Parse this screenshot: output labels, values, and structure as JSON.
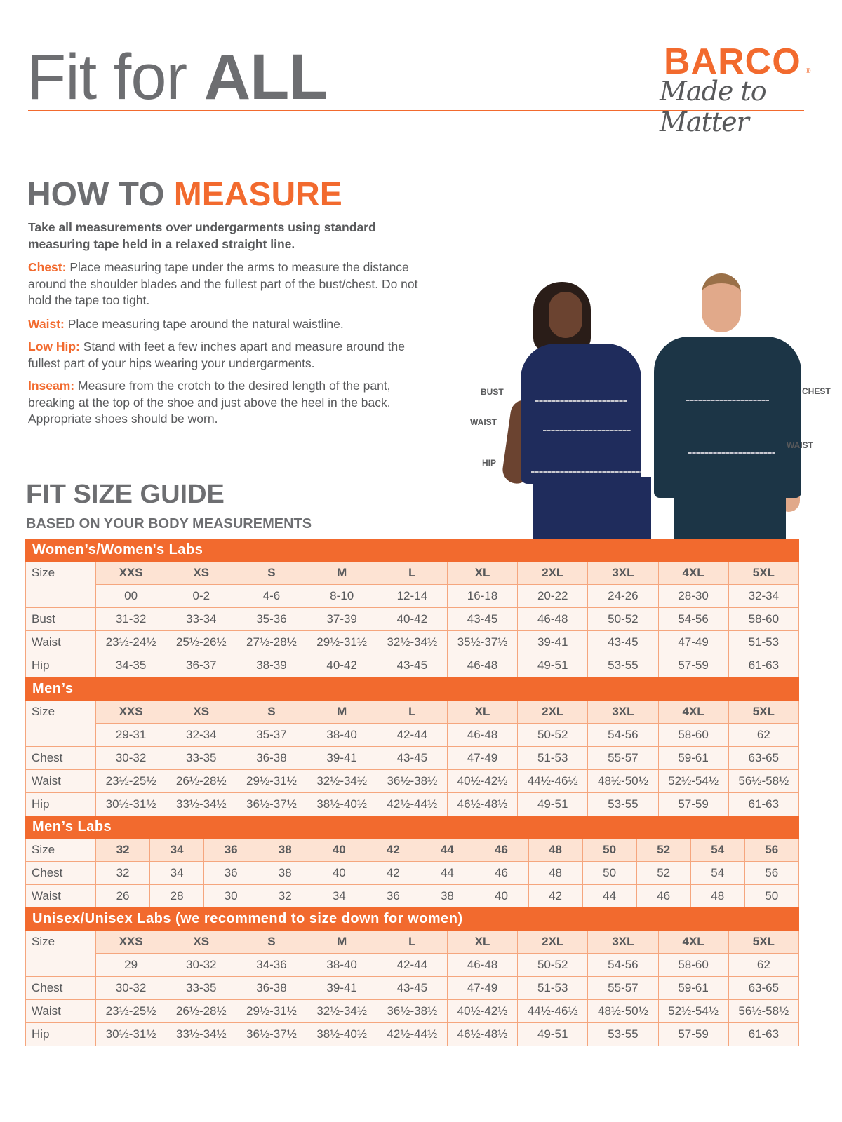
{
  "header": {
    "title_regular": "Fit for ",
    "title_bold": "ALL",
    "logo_brand": "BARCO",
    "logo_reg": "®",
    "logo_tagline": "Made to Matter"
  },
  "measure": {
    "heading_gray": "HOW TO ",
    "heading_orange": "MEASURE",
    "intro": "Take all measurements over undergarments using standard measuring tape held in a relaxed straight line.",
    "items": [
      {
        "key": "Chest:",
        "text": "Place measuring tape under the arms to measure the distance around the shoulder blades and the fullest part of the bust/chest. Do not hold the tape too tight."
      },
      {
        "key": "Waist:",
        "text": "Place measuring tape around the natural waistline."
      },
      {
        "key": "Low Hip:",
        "text": "Stand with feet a few inches apart and measure around the fullest part of your hips wearing your undergarments."
      },
      {
        "key": "Inseam:",
        "text": "Measure from the crotch to the desired length of the pant, breaking at the top of the shoe and just above the heel in the back. Appropriate shoes should be worn."
      }
    ]
  },
  "figure": {
    "women_labels": [
      "BUST",
      "WAIST",
      "HIP"
    ],
    "men_labels": [
      "CHEST",
      "WAIST"
    ],
    "scrub_colors": {
      "women": "#1f2c5c",
      "men": "#1c3546"
    }
  },
  "guide": {
    "title": "FIT SIZE GUIDE",
    "subtitle": "BASED ON YOUR BODY MEASUREMENTS"
  },
  "tables": [
    {
      "title": "Women’s/Women's Labs",
      "size_label": "Size",
      "sizes": [
        "XXS",
        "XS",
        "S",
        "M",
        "L",
        "XL",
        "2XL",
        "3XL",
        "4XL",
        "5XL"
      ],
      "numeric": [
        "00",
        "0-2",
        "4-6",
        "8-10",
        "12-14",
        "16-18",
        "20-22",
        "24-26",
        "28-30",
        "32-34"
      ],
      "rows": [
        {
          "label": "Bust",
          "values": [
            "31-32",
            "33-34",
            "35-36",
            "37-39",
            "40-42",
            "43-45",
            "46-48",
            "50-52",
            "54-56",
            "58-60"
          ]
        },
        {
          "label": "Waist",
          "values": [
            "23½-24½",
            "25½-26½",
            "27½-28½",
            "29½-31½",
            "32½-34½",
            "35½-37½",
            "39-41",
            "43-45",
            "47-49",
            "51-53"
          ]
        },
        {
          "label": "Hip",
          "values": [
            "34-35",
            "36-37",
            "38-39",
            "40-42",
            "43-45",
            "46-48",
            "49-51",
            "53-55",
            "57-59",
            "61-63"
          ]
        }
      ]
    },
    {
      "title": "Men’s",
      "size_label": "Size",
      "sizes": [
        "XXS",
        "XS",
        "S",
        "M",
        "L",
        "XL",
        "2XL",
        "3XL",
        "4XL",
        "5XL"
      ],
      "numeric": [
        "29-31",
        "32-34",
        "35-37",
        "38-40",
        "42-44",
        "46-48",
        "50-52",
        "54-56",
        "58-60",
        "62"
      ],
      "rows": [
        {
          "label": "Chest",
          "values": [
            "30-32",
            "33-35",
            "36-38",
            "39-41",
            "43-45",
            "47-49",
            "51-53",
            "55-57",
            "59-61",
            "63-65"
          ]
        },
        {
          "label": "Waist",
          "values": [
            "23½-25½",
            "26½-28½",
            "29½-31½",
            "32½-34½",
            "36½-38½",
            "40½-42½",
            "44½-46½",
            "48½-50½",
            "52½-54½",
            "56½-58½"
          ]
        },
        {
          "label": "Hip",
          "values": [
            "30½-31½",
            "33½-34½",
            "36½-37½",
            "38½-40½",
            "42½-44½",
            "46½-48½",
            "49-51",
            "53-55",
            "57-59",
            "61-63"
          ]
        }
      ]
    },
    {
      "title": "Men’s Labs",
      "size_label": "Size",
      "sizes": [
        "32",
        "34",
        "36",
        "38",
        "40",
        "42",
        "44",
        "46",
        "48",
        "50",
        "52",
        "54",
        "56"
      ],
      "rows": [
        {
          "label": "Chest",
          "values": [
            "32",
            "34",
            "36",
            "38",
            "40",
            "42",
            "44",
            "46",
            "48",
            "50",
            "52",
            "54",
            "56"
          ]
        },
        {
          "label": "Waist",
          "values": [
            "26",
            "28",
            "30",
            "32",
            "34",
            "36",
            "38",
            "40",
            "42",
            "44",
            "46",
            "48",
            "50"
          ]
        }
      ]
    },
    {
      "title": "Unisex/Unisex Labs (we recommend to size down for women)",
      "size_label": "Size",
      "sizes": [
        "XXS",
        "XS",
        "S",
        "M",
        "L",
        "XL",
        "2XL",
        "3XL",
        "4XL",
        "5XL"
      ],
      "numeric": [
        "29",
        "30-32",
        "34-36",
        "38-40",
        "42-44",
        "46-48",
        "50-52",
        "54-56",
        "58-60",
        "62"
      ],
      "rows": [
        {
          "label": "Chest",
          "values": [
            "30-32",
            "33-35",
            "36-38",
            "39-41",
            "43-45",
            "47-49",
            "51-53",
            "55-57",
            "59-61",
            "63-65"
          ]
        },
        {
          "label": "Waist",
          "values": [
            "23½-25½",
            "26½-28½",
            "29½-31½",
            "32½-34½",
            "36½-38½",
            "40½-42½",
            "44½-46½",
            "48½-50½",
            "52½-54½",
            "56½-58½"
          ]
        },
        {
          "label": "Hip",
          "values": [
            "30½-31½",
            "33½-34½",
            "36½-37½",
            "38½-40½",
            "42½-44½",
            "46½-48½",
            "49-51",
            "53-55",
            "57-59",
            "61-63"
          ]
        }
      ]
    }
  ]
}
